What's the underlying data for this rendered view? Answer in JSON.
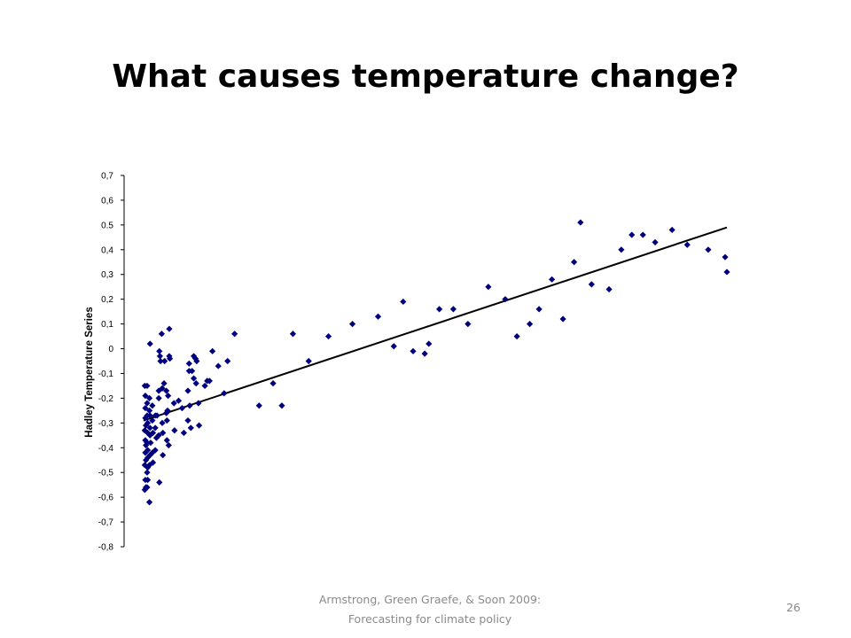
{
  "slide": {
    "title": "What causes temperature change?",
    "footer_line1": "Armstrong, Green Graefe, & Soon 2009:",
    "footer_line2": "Forecasting for climate policy",
    "page_number": "26"
  },
  "colors": {
    "marker": "#00007f",
    "trendline": "#000000",
    "axis": "#000000"
  },
  "chart_data": {
    "type": "scatter",
    "title": "",
    "xlabel": "",
    "ylabel": "Hadley Temperature Series",
    "marker": "diamond",
    "grid": false,
    "x_axis_visible": false,
    "ylim": [
      -0.8,
      0.7
    ],
    "y_ticks": [
      {
        "value": 0.7,
        "label": "0,7"
      },
      {
        "value": 0.6,
        "label": "0,6"
      },
      {
        "value": 0.5,
        "label": "0.5"
      },
      {
        "value": 0.4,
        "label": "0,4"
      },
      {
        "value": 0.3,
        "label": "0,3"
      },
      {
        "value": 0.2,
        "label": "0,2"
      },
      {
        "value": 0.1,
        "label": "0,1"
      },
      {
        "value": 0.0,
        "label": "0"
      },
      {
        "value": -0.1,
        "label": "-0,1"
      },
      {
        "value": -0.2,
        "label": "-0,2"
      },
      {
        "value": -0.3,
        "label": "-0,3"
      },
      {
        "value": -0.4,
        "label": "-0,4"
      },
      {
        "value": -0.5,
        "label": "-0,5"
      },
      {
        "value": -0.6,
        "label": "-0,6"
      },
      {
        "value": -0.7,
        "label": "-0,7"
      },
      {
        "value": -0.8,
        "label": "-0,8"
      }
    ],
    "x_range": [
      0,
      100
    ],
    "trendline": {
      "start": [
        0,
        -0.29
      ],
      "end": [
        100,
        0.49
      ]
    },
    "points": [
      [
        0.2,
        -0.15
      ],
      [
        0.3,
        -0.19
      ],
      [
        0.3,
        -0.24
      ],
      [
        0.3,
        -0.28
      ],
      [
        0.4,
        -0.31
      ],
      [
        0.2,
        -0.33
      ],
      [
        0.3,
        -0.37
      ],
      [
        0.4,
        -0.39
      ],
      [
        0.3,
        -0.42
      ],
      [
        0.4,
        -0.45
      ],
      [
        0.2,
        -0.47
      ],
      [
        0.3,
        -0.53
      ],
      [
        0.4,
        -0.56
      ],
      [
        0.2,
        -0.57
      ],
      [
        0.6,
        -0.15
      ],
      [
        0.6,
        -0.22
      ],
      [
        0.6,
        -0.27
      ],
      [
        0.7,
        -0.3
      ],
      [
        0.7,
        -0.34
      ],
      [
        0.6,
        -0.38
      ],
      [
        0.7,
        -0.41
      ],
      [
        0.7,
        -0.44
      ],
      [
        0.7,
        -0.48
      ],
      [
        0.6,
        -0.5
      ],
      [
        0.6,
        -0.56
      ],
      [
        0.7,
        -0.53
      ],
      [
        1.0,
        -0.2
      ],
      [
        1.0,
        -0.25
      ],
      [
        1.1,
        -0.32
      ],
      [
        1.1,
        -0.35
      ],
      [
        1.0,
        -0.47
      ],
      [
        1.0,
        -0.62
      ],
      [
        1.1,
        -0.43
      ],
      [
        1.1,
        0.02
      ],
      [
        1.1,
        -0.27
      ],
      [
        1.2,
        -0.38
      ],
      [
        1.5,
        -0.23
      ],
      [
        1.5,
        -0.29
      ],
      [
        1.6,
        -0.34
      ],
      [
        1.6,
        -0.46
      ],
      [
        1.5,
        -0.42
      ],
      [
        2.0,
        -0.27
      ],
      [
        2.0,
        -0.32
      ],
      [
        2.0,
        -0.41
      ],
      [
        2.2,
        -0.36
      ],
      [
        2.3,
        -0.27
      ],
      [
        2.6,
        -0.17
      ],
      [
        2.6,
        -0.2
      ],
      [
        2.6,
        -0.35
      ],
      [
        2.7,
        -0.54
      ],
      [
        2.7,
        -0.01
      ],
      [
        2.8,
        -0.03
      ],
      [
        2.9,
        -0.05
      ],
      [
        3.1,
        0.06
      ],
      [
        3.2,
        -0.16
      ],
      [
        3.2,
        -0.3
      ],
      [
        3.3,
        -0.34
      ],
      [
        3.3,
        -0.43
      ],
      [
        3.5,
        -0.14
      ],
      [
        3.6,
        -0.05
      ],
      [
        3.9,
        -0.17
      ],
      [
        3.9,
        -0.26
      ],
      [
        4.0,
        -0.29
      ],
      [
        4.0,
        -0.37
      ],
      [
        4.1,
        -0.25
      ],
      [
        4.2,
        -0.19
      ],
      [
        4.3,
        -0.39
      ],
      [
        4.4,
        -0.03
      ],
      [
        4.4,
        0.08
      ],
      [
        4.5,
        -0.04
      ],
      [
        5.2,
        -0.22
      ],
      [
        5.3,
        -0.33
      ],
      [
        6.0,
        -0.21
      ],
      [
        6.6,
        -0.24
      ],
      [
        6.9,
        -0.34
      ],
      [
        7.6,
        -0.17
      ],
      [
        7.6,
        -0.29
      ],
      [
        7.8,
        -0.09
      ],
      [
        7.8,
        -0.06
      ],
      [
        7.9,
        -0.23
      ],
      [
        8.3,
        -0.09
      ],
      [
        8.1,
        -0.32
      ],
      [
        8.6,
        -0.12
      ],
      [
        8.6,
        -0.03
      ],
      [
        8.9,
        -0.04
      ],
      [
        9.0,
        -0.14
      ],
      [
        9.1,
        -0.05
      ],
      [
        9.4,
        -0.22
      ],
      [
        9.5,
        -0.31
      ],
      [
        10.5,
        -0.15
      ],
      [
        10.9,
        -0.13
      ],
      [
        11.3,
        -0.13
      ],
      [
        11.8,
        -0.01
      ],
      [
        12.8,
        -0.07
      ],
      [
        13.8,
        -0.18
      ],
      [
        14.4,
        -0.05
      ],
      [
        15.6,
        0.06
      ],
      [
        19.8,
        -0.23
      ],
      [
        22.2,
        -0.14
      ],
      [
        23.7,
        -0.23
      ],
      [
        25.6,
        0.06
      ],
      [
        28.3,
        -0.05
      ],
      [
        31.7,
        0.05
      ],
      [
        35.8,
        0.1
      ],
      [
        40.2,
        0.13
      ],
      [
        42.9,
        0.01
      ],
      [
        44.5,
        0.19
      ],
      [
        46.2,
        -0.01
      ],
      [
        48.2,
        -0.02
      ],
      [
        48.9,
        0.02
      ],
      [
        50.7,
        0.16
      ],
      [
        53.1,
        0.16
      ],
      [
        55.6,
        0.1
      ],
      [
        59.1,
        0.25
      ],
      [
        62.0,
        0.2
      ],
      [
        64.0,
        0.05
      ],
      [
        66.2,
        0.1
      ],
      [
        67.8,
        0.16
      ],
      [
        70.0,
        0.28
      ],
      [
        71.9,
        0.12
      ],
      [
        73.8,
        0.35
      ],
      [
        74.9,
        0.51
      ],
      [
        76.8,
        0.26
      ],
      [
        79.8,
        0.24
      ],
      [
        81.9,
        0.4
      ],
      [
        83.7,
        0.46
      ],
      [
        85.6,
        0.46
      ],
      [
        87.7,
        0.43
      ],
      [
        90.6,
        0.48
      ],
      [
        93.2,
        0.42
      ],
      [
        96.8,
        0.4
      ],
      [
        99.7,
        0.37
      ],
      [
        100.0,
        0.31
      ]
    ]
  }
}
